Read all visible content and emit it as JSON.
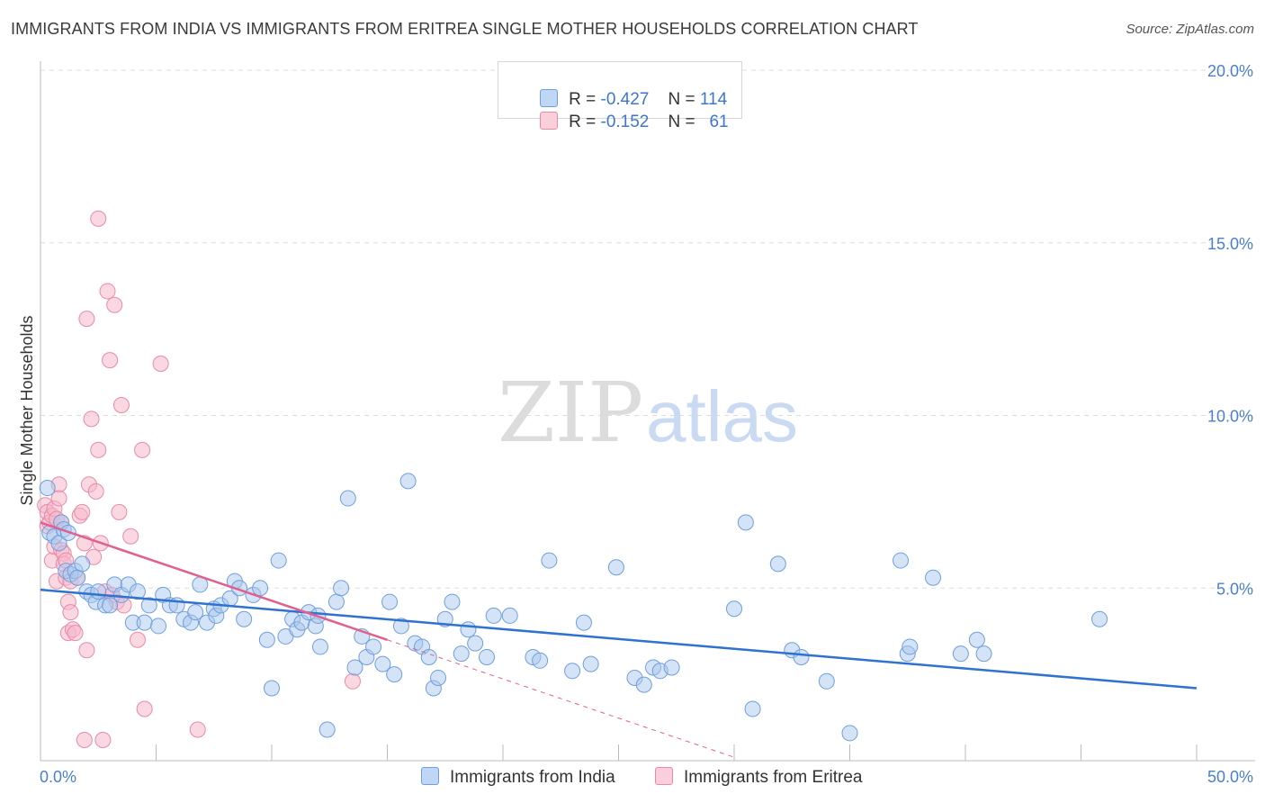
{
  "title": "IMMIGRANTS FROM INDIA VS IMMIGRANTS FROM ERITREA SINGLE MOTHER HOUSEHOLDS CORRELATION CHART",
  "source": "Source: ZipAtlas.com",
  "watermark": {
    "zip": "ZIP",
    "atlas": "atlas"
  },
  "legend_top": {
    "india": {
      "r_label": "R = ",
      "r_value": "-0.427",
      "n_label": "N = ",
      "n_value": "114"
    },
    "eritrea": {
      "r_label": "R = ",
      "r_value": "-0.152",
      "n_label": "N = ",
      "n_value": "61"
    }
  },
  "legend_bottom": {
    "india": "Immigrants from India",
    "eritrea": "Immigrants from Eritrea"
  },
  "colors": {
    "india_fill": "#a9c7ee",
    "india_stroke": "#6f9fdc",
    "india_line": "#2f72cf",
    "eritrea_fill": "#f5b8cb",
    "eritrea_stroke": "#e88aa8",
    "eritrea_line": "#e0608f",
    "tick_text": "#4a7fd0",
    "grid": "#dddddd"
  },
  "chart_data": {
    "type": "scatter",
    "title": "IMMIGRANTS FROM INDIA VS IMMIGRANTS FROM ERITREA SINGLE MOTHER HOUSEHOLDS CORRELATION CHART",
    "xlabel": "",
    "ylabel": "Single Mother Households",
    "xlim": [
      0,
      50
    ],
    "ylim": [
      0,
      20.5
    ],
    "x_tick_labels": [
      "0.0%",
      "50.0%"
    ],
    "y_ticks": [
      5,
      10,
      15,
      20
    ],
    "y_tick_labels": [
      "5.0%",
      "10.0%",
      "15.0%",
      "20.0%"
    ],
    "grid": true,
    "legend_position": "top-center",
    "series": [
      {
        "name": "Immigrants from India",
        "R": -0.427,
        "N": 114,
        "trend": {
          "x": [
            0,
            50
          ],
          "y": [
            4.95,
            2.1
          ]
        },
        "points": [
          [
            0.3,
            7.9
          ],
          [
            0.4,
            6.6
          ],
          [
            0.6,
            6.5
          ],
          [
            0.8,
            6.3
          ],
          [
            0.9,
            6.9
          ],
          [
            1.0,
            6.7
          ],
          [
            1.1,
            5.5
          ],
          [
            1.2,
            6.6
          ],
          [
            1.3,
            5.4
          ],
          [
            1.5,
            5.5
          ],
          [
            1.6,
            5.3
          ],
          [
            1.8,
            5.7
          ],
          [
            2.0,
            4.9
          ],
          [
            2.2,
            4.8
          ],
          [
            2.4,
            4.6
          ],
          [
            2.5,
            4.9
          ],
          [
            2.8,
            4.5
          ],
          [
            3.0,
            4.5
          ],
          [
            3.2,
            5.1
          ],
          [
            3.5,
            4.8
          ],
          [
            3.8,
            5.1
          ],
          [
            4.0,
            4.0
          ],
          [
            4.2,
            4.9
          ],
          [
            4.5,
            4.0
          ],
          [
            4.7,
            4.5
          ],
          [
            5.1,
            3.9
          ],
          [
            5.3,
            4.8
          ],
          [
            5.6,
            4.5
          ],
          [
            5.9,
            4.5
          ],
          [
            6.2,
            4.1
          ],
          [
            6.5,
            4.0
          ],
          [
            6.7,
            4.3
          ],
          [
            6.9,
            5.1
          ],
          [
            7.2,
            4.0
          ],
          [
            7.5,
            4.4
          ],
          [
            7.6,
            4.2
          ],
          [
            7.8,
            4.5
          ],
          [
            8.2,
            4.7
          ],
          [
            8.4,
            5.2
          ],
          [
            8.6,
            5.0
          ],
          [
            8.8,
            4.1
          ],
          [
            9.2,
            4.8
          ],
          [
            9.5,
            5.0
          ],
          [
            9.8,
            3.5
          ],
          [
            10.0,
            2.1
          ],
          [
            10.3,
            5.8
          ],
          [
            10.6,
            3.6
          ],
          [
            10.9,
            4.1
          ],
          [
            11.1,
            3.8
          ],
          [
            11.3,
            4.0
          ],
          [
            11.6,
            4.3
          ],
          [
            11.9,
            3.9
          ],
          [
            12.0,
            4.2
          ],
          [
            12.1,
            3.3
          ],
          [
            12.4,
            0.9
          ],
          [
            12.8,
            4.6
          ],
          [
            13.0,
            5.0
          ],
          [
            13.3,
            7.6
          ],
          [
            13.6,
            2.7
          ],
          [
            13.9,
            3.6
          ],
          [
            14.1,
            3.0
          ],
          [
            14.4,
            3.3
          ],
          [
            14.8,
            2.8
          ],
          [
            15.1,
            4.6
          ],
          [
            15.3,
            2.5
          ],
          [
            15.6,
            3.9
          ],
          [
            15.9,
            8.1
          ],
          [
            16.2,
            3.4
          ],
          [
            16.5,
            3.3
          ],
          [
            16.8,
            3.0
          ],
          [
            17.0,
            2.1
          ],
          [
            17.2,
            2.4
          ],
          [
            17.5,
            4.1
          ],
          [
            17.8,
            4.6
          ],
          [
            18.2,
            3.1
          ],
          [
            18.5,
            3.8
          ],
          [
            18.8,
            3.4
          ],
          [
            19.3,
            3.0
          ],
          [
            19.6,
            4.2
          ],
          [
            20.3,
            4.2
          ],
          [
            21.3,
            3.0
          ],
          [
            21.6,
            2.9
          ],
          [
            22.0,
            5.8
          ],
          [
            23.0,
            2.6
          ],
          [
            23.5,
            4.0
          ],
          [
            23.8,
            2.8
          ],
          [
            24.9,
            5.6
          ],
          [
            25.7,
            2.4
          ],
          [
            26.1,
            2.2
          ],
          [
            26.5,
            2.7
          ],
          [
            26.8,
            2.6
          ],
          [
            27.3,
            2.7
          ],
          [
            30.0,
            4.4
          ],
          [
            30.5,
            6.9
          ],
          [
            30.8,
            1.5
          ],
          [
            31.9,
            5.7
          ],
          [
            32.5,
            3.2
          ],
          [
            32.9,
            3.0
          ],
          [
            34.0,
            2.3
          ],
          [
            35.0,
            0.8
          ],
          [
            37.2,
            5.8
          ],
          [
            37.5,
            3.1
          ],
          [
            37.6,
            3.3
          ],
          [
            38.6,
            5.3
          ],
          [
            39.8,
            3.1
          ],
          [
            40.5,
            3.5
          ],
          [
            40.8,
            3.1
          ],
          [
            45.8,
            4.1
          ]
        ]
      },
      {
        "name": "Immigrants from Eritrea",
        "R": -0.152,
        "N": 61,
        "trend": {
          "x": [
            0,
            15
          ],
          "y": [
            6.9,
            3.5
          ]
        },
        "trend_dashed": {
          "x": [
            15,
            30
          ],
          "y": [
            3.5,
            0.1
          ]
        },
        "points": [
          [
            0.2,
            7.4
          ],
          [
            0.3,
            7.2
          ],
          [
            0.3,
            6.8
          ],
          [
            0.4,
            6.9
          ],
          [
            0.5,
            7.1
          ],
          [
            0.5,
            5.8
          ],
          [
            0.6,
            6.2
          ],
          [
            0.6,
            7.3
          ],
          [
            0.7,
            7.0
          ],
          [
            0.7,
            5.2
          ],
          [
            0.8,
            8.0
          ],
          [
            0.8,
            7.6
          ],
          [
            0.9,
            6.9
          ],
          [
            0.9,
            6.1
          ],
          [
            1.0,
            6.0
          ],
          [
            1.0,
            5.7
          ],
          [
            1.1,
            5.8
          ],
          [
            1.1,
            5.3
          ],
          [
            1.2,
            4.6
          ],
          [
            1.2,
            3.7
          ],
          [
            1.3,
            5.2
          ],
          [
            1.3,
            4.3
          ],
          [
            1.4,
            3.8
          ],
          [
            1.5,
            3.7
          ],
          [
            1.6,
            5.3
          ],
          [
            1.7,
            7.1
          ],
          [
            1.8,
            7.2
          ],
          [
            1.9,
            6.3
          ],
          [
            1.9,
            0.6
          ],
          [
            2.0,
            3.2
          ],
          [
            2.0,
            12.8
          ],
          [
            2.1,
            8.0
          ],
          [
            2.2,
            9.9
          ],
          [
            2.3,
            5.9
          ],
          [
            2.4,
            7.8
          ],
          [
            2.5,
            9.0
          ],
          [
            2.5,
            15.7
          ],
          [
            2.6,
            6.3
          ],
          [
            2.7,
            0.6
          ],
          [
            2.8,
            4.9
          ],
          [
            2.9,
            13.6
          ],
          [
            3.0,
            11.6
          ],
          [
            3.1,
            4.8
          ],
          [
            3.2,
            13.2
          ],
          [
            3.3,
            4.6
          ],
          [
            3.4,
            7.2
          ],
          [
            3.5,
            10.3
          ],
          [
            3.6,
            4.5
          ],
          [
            3.9,
            6.5
          ],
          [
            4.2,
            3.5
          ],
          [
            4.4,
            9.0
          ],
          [
            4.5,
            1.5
          ],
          [
            5.2,
            11.5
          ],
          [
            6.8,
            0.9
          ],
          [
            13.5,
            2.3
          ]
        ]
      }
    ]
  }
}
